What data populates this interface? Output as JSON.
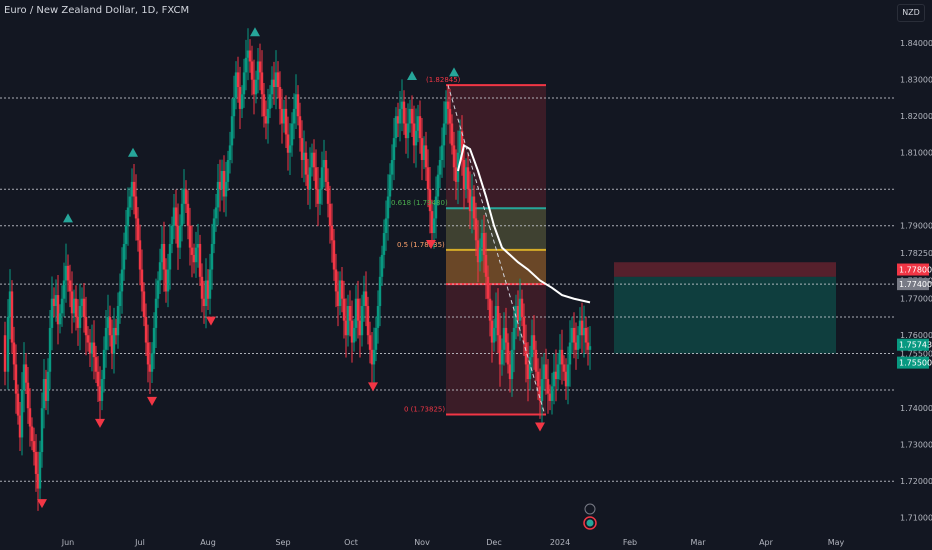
{
  "header": {
    "symbol": "Euro / New Zealand Dollar, 1D, FXCM",
    "currency": "NZD"
  },
  "chart_data": {
    "type": "candlestick",
    "ylim": [
      1.705,
      1.848
    ],
    "y_ticks": [
      "1.84000",
      "1.83000",
      "1.82000",
      "1.81000",
      "1.79000",
      "1.78250",
      "1.77500",
      "1.77000",
      "1.76000",
      "1.75500",
      "1.74000",
      "1.73000",
      "1.72000",
      "1.71000"
    ],
    "x_ticks": [
      "Jun",
      "Jul",
      "Aug",
      "Sep",
      "Oct",
      "Nov",
      "Dec",
      "2024",
      "Feb",
      "Mar",
      "Apr",
      "May"
    ],
    "horizontal_levels": [
      {
        "value": "1.82500",
        "y": 1.825
      },
      {
        "value": "1.80000",
        "y": 1.8
      },
      {
        "value": "1.79000",
        "y": 1.79
      },
      {
        "value": "1.77400",
        "y": 1.774
      },
      {
        "value": "1.76500",
        "y": 1.765
      },
      {
        "value": "1.75500",
        "y": 1.755
      },
      {
        "value": "1.74500",
        "y": 1.745
      },
      {
        "value": "1.72000",
        "y": 1.72
      }
    ],
    "price_tags": [
      {
        "value": "1.77800",
        "y": 1.778,
        "color": "#f23645"
      },
      {
        "value": "1.77400",
        "y": 1.774,
        "color": "#787b86"
      },
      {
        "value": "1.75743",
        "y": 1.7574,
        "color": "#089981"
      },
      {
        "value": "1.75500",
        "y": 1.7525,
        "color": "#089981"
      }
    ],
    "fib_labels": [
      {
        "text": "(1.82845)",
        "y": 1.8285,
        "color": "#f23645"
      },
      {
        "text": "0.618 (1.79480)",
        "y": 1.7948,
        "color": "#4caf50"
      },
      {
        "text": "0.5 (1.78335)",
        "y": 1.7834,
        "color": "#ffa36c"
      },
      {
        "text": "0 (1.73825)",
        "y": 1.7383,
        "color": "#f23645"
      }
    ],
    "series": [
      {
        "name": "ohlc",
        "points": [
          [
            0,
            1.76
          ],
          [
            3,
            1.75
          ],
          [
            6,
            1.765
          ],
          [
            8,
            1.772
          ],
          [
            10,
            1.758
          ],
          [
            12,
            1.752
          ],
          [
            14,
            1.744
          ],
          [
            16,
            1.738
          ],
          [
            18,
            1.732
          ],
          [
            20,
            1.745
          ],
          [
            22,
            1.752
          ],
          [
            24,
            1.747
          ],
          [
            26,
            1.74
          ],
          [
            28,
            1.735
          ],
          [
            30,
            1.731
          ],
          [
            32,
            1.728
          ],
          [
            34,
            1.722
          ],
          [
            36,
            1.718
          ],
          [
            38,
            1.728
          ],
          [
            40,
            1.74
          ],
          [
            42,
            1.748
          ],
          [
            44,
            1.742
          ],
          [
            46,
            1.75
          ],
          [
            48,
            1.762
          ],
          [
            50,
            1.77
          ],
          [
            52,
            1.768
          ],
          [
            54,
            1.771
          ],
          [
            56,
            1.763
          ],
          [
            58,
            1.766
          ],
          [
            60,
            1.77
          ],
          [
            62,
            1.775
          ],
          [
            64,
            1.779
          ],
          [
            66,
            1.775
          ],
          [
            68,
            1.772
          ],
          [
            70,
            1.766
          ],
          [
            72,
            1.77
          ],
          [
            74,
            1.765
          ],
          [
            76,
            1.762
          ],
          [
            78,
            1.768
          ],
          [
            80,
            1.77
          ],
          [
            82,
            1.765
          ],
          [
            84,
            1.76
          ],
          [
            86,
            1.758
          ],
          [
            88,
            1.755
          ],
          [
            90,
            1.758
          ],
          [
            92,
            1.754
          ],
          [
            94,
            1.75
          ],
          [
            96,
            1.746
          ],
          [
            98,
            1.742
          ],
          [
            100,
            1.748
          ],
          [
            102,
            1.756
          ],
          [
            104,
            1.762
          ],
          [
            106,
            1.765
          ],
          [
            108,
            1.76
          ],
          [
            110,
            1.755
          ],
          [
            112,
            1.762
          ],
          [
            114,
            1.76
          ],
          [
            116,
            1.768
          ],
          [
            118,
            1.772
          ],
          [
            120,
            1.778
          ],
          [
            122,
            1.785
          ],
          [
            124,
            1.79
          ],
          [
            126,
            1.795
          ],
          [
            128,
            1.798
          ],
          [
            130,
            1.802
          ],
          [
            132,
            1.798
          ],
          [
            134,
            1.792
          ],
          [
            136,
            1.786
          ],
          [
            138,
            1.778
          ],
          [
            140,
            1.772
          ],
          [
            142,
            1.765
          ],
          [
            144,
            1.758
          ],
          [
            146,
            1.752
          ],
          [
            148,
            1.75
          ],
          [
            150,
            1.755
          ],
          [
            152,
            1.762
          ],
          [
            154,
            1.77
          ],
          [
            156,
            1.775
          ],
          [
            158,
            1.78
          ],
          [
            160,
            1.785
          ],
          [
            162,
            1.778
          ],
          [
            164,
            1.772
          ],
          [
            166,
            1.778
          ],
          [
            168,
            1.785
          ],
          [
            170,
            1.79
          ],
          [
            172,
            1.795
          ],
          [
            174,
            1.79
          ],
          [
            176,
            1.784
          ],
          [
            178,
            1.79
          ],
          [
            180,
            1.796
          ],
          [
            182,
            1.8
          ],
          [
            184,
            1.796
          ],
          [
            186,
            1.79
          ],
          [
            188,
            1.784
          ],
          [
            190,
            1.782
          ],
          [
            192,
            1.78
          ],
          [
            194,
            1.784
          ],
          [
            196,
            1.785
          ],
          [
            198,
            1.776
          ],
          [
            200,
            1.77
          ],
          [
            202,
            1.768
          ],
          [
            204,
            1.775
          ],
          [
            206,
            1.77
          ],
          [
            208,
            1.778
          ],
          [
            210,
            1.785
          ],
          [
            212,
            1.792
          ],
          [
            214,
            1.795
          ],
          [
            216,
            1.802
          ],
          [
            218,
            1.8
          ],
          [
            220,
            1.805
          ],
          [
            222,
            1.798
          ],
          [
            224,
            1.802
          ],
          [
            226,
            1.808
          ],
          [
            228,
            1.812
          ],
          [
            230,
            1.82
          ],
          [
            232,
            1.825
          ],
          [
            234,
            1.832
          ],
          [
            236,
            1.828
          ],
          [
            238,
            1.822
          ],
          [
            240,
            1.826
          ],
          [
            242,
            1.832
          ],
          [
            244,
            1.836
          ],
          [
            246,
            1.838
          ],
          [
            248,
            1.835
          ],
          [
            250,
            1.83
          ],
          [
            252,
            1.826
          ],
          [
            254,
            1.83
          ],
          [
            256,
            1.835
          ],
          [
            258,
            1.832
          ],
          [
            260,
            1.826
          ],
          [
            262,
            1.82
          ],
          [
            264,
            1.818
          ],
          [
            266,
            1.822
          ],
          [
            268,
            1.826
          ],
          [
            270,
            1.83
          ],
          [
            272,
            1.828
          ],
          [
            274,
            1.832
          ],
          [
            276,
            1.828
          ],
          [
            278,
            1.822
          ],
          [
            280,
            1.818
          ],
          [
            282,
            1.822
          ],
          [
            284,
            1.815
          ],
          [
            286,
            1.81
          ],
          [
            288,
            1.812
          ],
          [
            290,
            1.818
          ],
          [
            292,
            1.822
          ],
          [
            294,
            1.826
          ],
          [
            296,
            1.82
          ],
          [
            298,
            1.814
          ],
          [
            300,
            1.808
          ],
          [
            302,
            1.81
          ],
          [
            304,
            1.804
          ],
          [
            306,
            1.8
          ],
          [
            308,
            1.806
          ],
          [
            310,
            1.81
          ],
          [
            312,
            1.806
          ],
          [
            314,
            1.8
          ],
          [
            316,
            1.796
          ],
          [
            318,
            1.8
          ],
          [
            320,
            1.806
          ],
          [
            322,
            1.808
          ],
          [
            324,
            1.802
          ],
          [
            326,
            1.796
          ],
          [
            328,
            1.79
          ],
          [
            330,
            1.786
          ],
          [
            332,
            1.778
          ],
          [
            334,
            1.772
          ],
          [
            336,
            1.768
          ],
          [
            338,
            1.775
          ],
          [
            340,
            1.77
          ],
          [
            342,
            1.764
          ],
          [
            344,
            1.76
          ],
          [
            346,
            1.768
          ],
          [
            348,
            1.764
          ],
          [
            350,
            1.758
          ],
          [
            352,
            1.762
          ],
          [
            354,
            1.77
          ],
          [
            356,
            1.764
          ],
          [
            358,
            1.76
          ],
          [
            360,
            1.768
          ],
          [
            362,
            1.772
          ],
          [
            364,
            1.768
          ],
          [
            366,
            1.76
          ],
          [
            368,
            1.756
          ],
          [
            370,
            1.752
          ],
          [
            372,
            1.756
          ],
          [
            374,
            1.762
          ],
          [
            376,
            1.768
          ],
          [
            378,
            1.776
          ],
          [
            380,
            1.782
          ],
          [
            382,
            1.788
          ],
          [
            384,
            1.792
          ],
          [
            386,
            1.798
          ],
          [
            388,
            1.804
          ],
          [
            390,
            1.808
          ],
          [
            392,
            1.814
          ],
          [
            394,
            1.82
          ],
          [
            396,
            1.818
          ],
          [
            398,
            1.822
          ],
          [
            400,
            1.824
          ],
          [
            402,
            1.818
          ],
          [
            404,
            1.814
          ],
          [
            406,
            1.818
          ],
          [
            408,
            1.822
          ],
          [
            410,
            1.818
          ],
          [
            412,
            1.812
          ],
          [
            414,
            1.816
          ],
          [
            416,
            1.82
          ],
          [
            418,
            1.814
          ],
          [
            420,
            1.808
          ],
          [
            422,
            1.812
          ],
          [
            424,
            1.806
          ],
          [
            426,
            1.8
          ],
          [
            428,
            1.794
          ],
          [
            430,
            1.788
          ],
          [
            432,
            1.792
          ],
          [
            434,
            1.798
          ],
          [
            436,
            1.804
          ],
          [
            438,
            1.808
          ],
          [
            440,
            1.812
          ],
          [
            442,
            1.818
          ],
          [
            444,
            1.824
          ],
          [
            446,
            1.822
          ],
          [
            448,
            1.818
          ],
          [
            450,
            1.812
          ],
          [
            452,
            1.806
          ],
          [
            454,
            1.802
          ],
          [
            456,
            1.81
          ],
          [
            458,
            1.816
          ],
          [
            460,
            1.808
          ],
          [
            462,
            1.8
          ],
          [
            464,
            1.806
          ],
          [
            466,
            1.8
          ],
          [
            468,
            1.794
          ],
          [
            470,
            1.798
          ],
          [
            472,
            1.792
          ],
          [
            474,
            1.786
          ],
          [
            476,
            1.78
          ],
          [
            478,
            1.784
          ],
          [
            480,
            1.788
          ],
          [
            482,
            1.782
          ],
          [
            484,
            1.776
          ],
          [
            486,
            1.77
          ],
          [
            488,
            1.764
          ],
          [
            490,
            1.758
          ],
          [
            492,
            1.762
          ],
          [
            494,
            1.768
          ],
          [
            496,
            1.76
          ],
          [
            498,
            1.752
          ],
          [
            500,
            1.756
          ],
          [
            502,
            1.762
          ],
          [
            504,
            1.758
          ],
          [
            506,
            1.752
          ],
          [
            508,
            1.748
          ],
          [
            510,
            1.756
          ],
          [
            512,
            1.762
          ],
          [
            514,
            1.768
          ],
          [
            516,
            1.764
          ],
          [
            518,
            1.77
          ],
          [
            520,
            1.765
          ],
          [
            522,
            1.758
          ],
          [
            524,
            1.752
          ],
          [
            526,
            1.748
          ],
          [
            528,
            1.754
          ],
          [
            530,
            1.76
          ],
          [
            532,
            1.756
          ],
          [
            534,
            1.75
          ],
          [
            536,
            1.746
          ],
          [
            538,
            1.742
          ],
          [
            540,
            1.748
          ],
          [
            542,
            1.752
          ],
          [
            544,
            1.748
          ],
          [
            546,
            1.744
          ],
          [
            548,
            1.742
          ],
          [
            550,
            1.746
          ],
          [
            552,
            1.75
          ],
          [
            554,
            1.748
          ],
          [
            556,
            1.752
          ],
          [
            558,
            1.756
          ],
          [
            560,
            1.752
          ],
          [
            562,
            1.75
          ],
          [
            564,
            1.746
          ],
          [
            566,
            1.752
          ],
          [
            568,
            1.758
          ],
          [
            570,
            1.762
          ],
          [
            572,
            1.758
          ],
          [
            574,
            1.756
          ],
          [
            576,
            1.76
          ],
          [
            578,
            1.764
          ],
          [
            580,
            1.76
          ],
          [
            582,
            1.762
          ],
          [
            584,
            1.758
          ],
          [
            586,
            1.756
          ],
          [
            588,
            1.757
          ]
        ]
      }
    ]
  }
}
